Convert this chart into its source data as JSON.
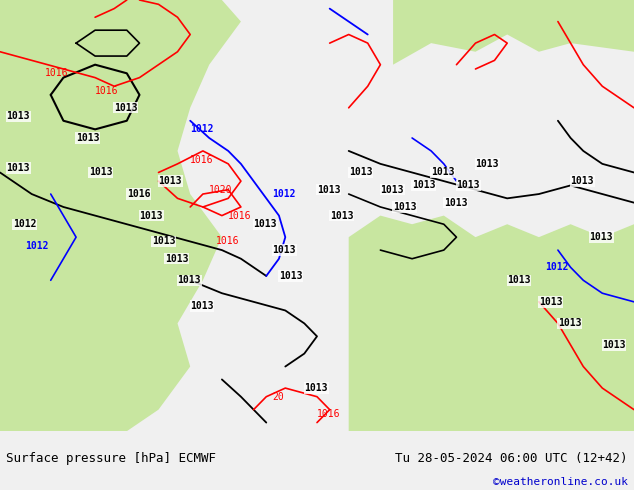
{
  "title_left": "Surface pressure [hPa] ECMWF",
  "title_right": "Tu 28-05-2024 06:00 UTC (12+42)",
  "credit": "©weatheronline.co.uk",
  "bg_color": "#f0f0f0",
  "map_bg": "#ffffff",
  "land_color": "#c8e6a0",
  "font_family": "monospace",
  "bottom_bar_color": "#e8e8e8",
  "label_fontsize": 7,
  "credit_color": "#0000cc"
}
